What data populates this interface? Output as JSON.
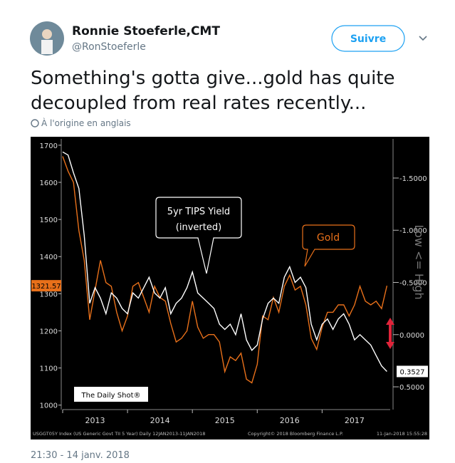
{
  "tweet": {
    "name": "Ronnie Stoeferle,CMT",
    "handle": "@RonStoeferle",
    "follow_button": "Suivre",
    "text_lines": [
      "Something's gotta give...gold has quite",
      "decoupled from real rates recently..."
    ],
    "translation_note": "À l'origine en anglais",
    "timestamp": "21:30 - 14 janv. 2018"
  },
  "chart_data": {
    "type": "line",
    "watermark": "The Daily Shot®",
    "callout_note": "(inverted)",
    "y2_axis_label": "Low <= High",
    "footer_left": "USGGT05Y Index (US Generic Govt TII 5 Year) Daily 12JAN2013-11JAN2018",
    "footer_center": "Copyright© 2018 Bloomberg Finance L.P.",
    "footer_right": "11-Jan-2018 15:55:28",
    "x": [
      2013.0,
      2013.083,
      2013.167,
      2013.25,
      2013.333,
      2013.417,
      2013.5,
      2013.583,
      2013.667,
      2013.75,
      2013.833,
      2013.917,
      2014.0,
      2014.083,
      2014.167,
      2014.25,
      2014.333,
      2014.417,
      2014.5,
      2014.583,
      2014.667,
      2014.75,
      2014.833,
      2014.917,
      2015.0,
      2015.083,
      2015.167,
      2015.25,
      2015.333,
      2015.417,
      2015.5,
      2015.583,
      2015.667,
      2015.75,
      2015.833,
      2015.917,
      2016.0,
      2016.083,
      2016.167,
      2016.25,
      2016.333,
      2016.417,
      2016.5,
      2016.583,
      2016.667,
      2016.75,
      2016.833,
      2016.917,
      2017.0,
      2017.083,
      2017.167,
      2017.25,
      2017.333,
      2017.417,
      2017.5,
      2017.583,
      2017.667,
      2017.75,
      2017.833,
      2017.917,
      2018.0
    ],
    "xlim": [
      2013,
      2018.05
    ],
    "xticks": [
      2013,
      2014,
      2015,
      2016,
      2017
    ],
    "ylim": [
      988,
      1717
    ],
    "yticks": [
      1000,
      1100,
      1200,
      1300,
      1400,
      1500,
      1600,
      1700
    ],
    "y2lim": [
      0.718,
      -1.875
    ],
    "y2ticks": [
      {
        "value": -1.5,
        "label": "-1.5000"
      },
      {
        "value": -1.0,
        "label": "-1.0000"
      },
      {
        "value": -0.5,
        "label": "-0.5000"
      },
      {
        "value": 0.0,
        "label": "0.0000"
      },
      {
        "value": 0.5,
        "label": "0.5000"
      }
    ],
    "series": [
      {
        "name": "Gold",
        "color": "#e8701a",
        "values": [
          1670,
          1630,
          1600,
          1470,
          1390,
          1230,
          1310,
          1390,
          1330,
          1320,
          1250,
          1200,
          1240,
          1320,
          1330,
          1290,
          1250,
          1320,
          1290,
          1280,
          1220,
          1170,
          1180,
          1200,
          1280,
          1210,
          1180,
          1190,
          1190,
          1170,
          1090,
          1130,
          1120,
          1140,
          1070,
          1060,
          1110,
          1240,
          1230,
          1290,
          1250,
          1320,
          1350,
          1310,
          1320,
          1270,
          1180,
          1150,
          1210,
          1250,
          1250,
          1270,
          1270,
          1240,
          1270,
          1320,
          1280,
          1270,
          1280,
          1260,
          1321.57
        ]
      },
      {
        "name": "5yr TIPS Yield",
        "color": "#ffffff",
        "axis": "y2",
        "values": [
          -1.75,
          -1.72,
          -1.55,
          -1.4,
          -0.95,
          -0.3,
          -0.45,
          -0.35,
          -0.2,
          -0.4,
          -0.35,
          -0.25,
          -0.2,
          -0.4,
          -0.35,
          -0.45,
          -0.55,
          -0.4,
          -0.35,
          -0.45,
          -0.2,
          -0.3,
          -0.35,
          -0.45,
          -0.6,
          -0.4,
          -0.35,
          -0.3,
          -0.25,
          -0.1,
          -0.05,
          -0.1,
          0.0,
          -0.2,
          0.05,
          0.15,
          0.1,
          -0.15,
          -0.3,
          -0.35,
          -0.3,
          -0.55,
          -0.65,
          -0.5,
          -0.55,
          -0.45,
          -0.1,
          0.05,
          -0.1,
          -0.15,
          -0.05,
          -0.15,
          -0.2,
          -0.1,
          0.05,
          0.0,
          0.05,
          0.1,
          0.2,
          0.3,
          0.3527
        ]
      }
    ]
  }
}
